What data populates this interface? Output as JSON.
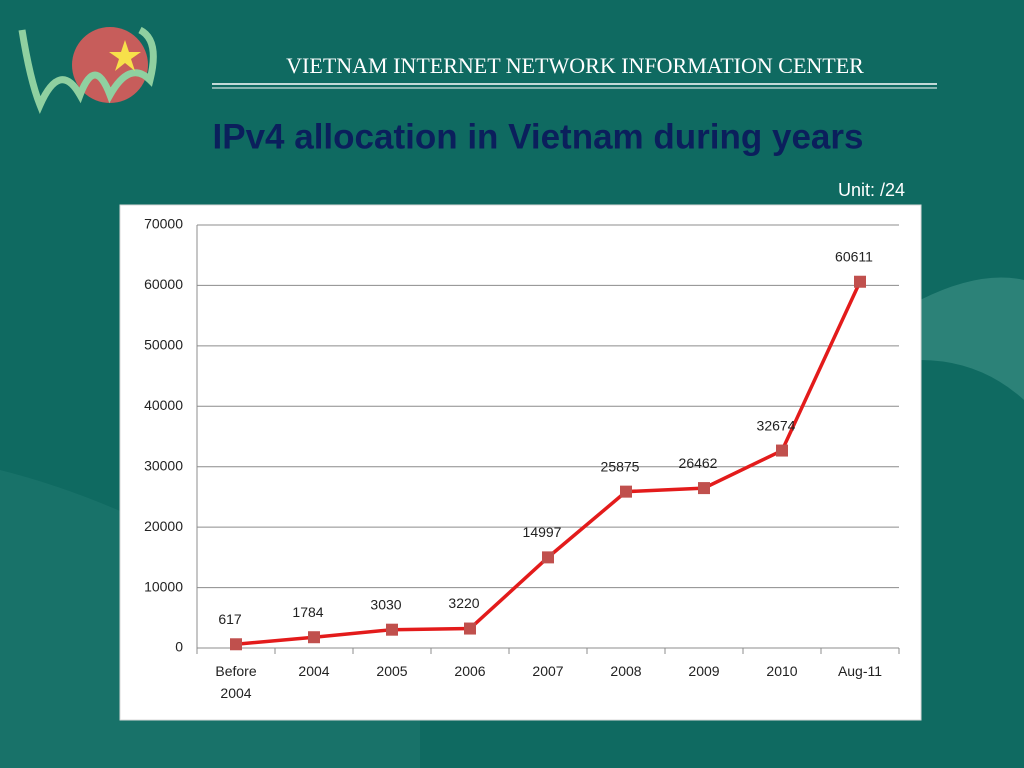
{
  "header": {
    "org": "VIETNAM INTERNET NETWORK INFORMATION CENTER"
  },
  "chart_data": {
    "type": "line",
    "title": "IPv4 allocation in Vietnam during years",
    "subtitle": "Unit: /24",
    "categories": [
      "Before 2004",
      "2004",
      "2005",
      "2006",
      "2007",
      "2008",
      "2009",
      "2010",
      "Aug-11"
    ],
    "series": [
      {
        "name": "IPv4",
        "color": "#e31b1b",
        "marker_color": "#c0504d",
        "values": [
          617,
          1784,
          3030,
          3220,
          14997,
          25875,
          26462,
          32674,
          60611
        ]
      }
    ],
    "ylim": [
      0,
      70000
    ],
    "yticks": [
      0,
      10000,
      20000,
      30000,
      40000,
      50000,
      60000,
      70000
    ],
    "grid": true
  }
}
